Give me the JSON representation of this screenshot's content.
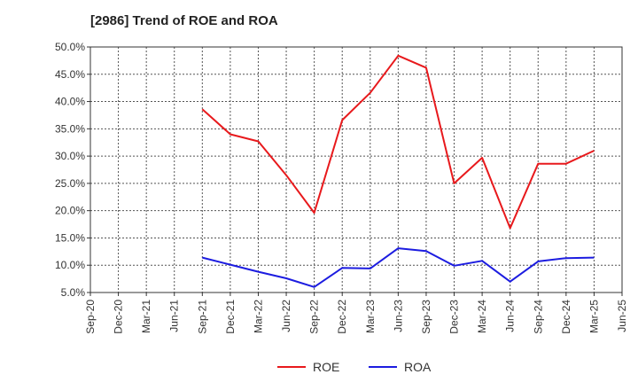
{
  "chart_data": {
    "type": "line",
    "title": "[2986]  Trend of ROE and ROA",
    "xlabel": "",
    "ylabel": "",
    "y_ticks": [
      "5.0%",
      "10.0%",
      "15.0%",
      "20.0%",
      "25.0%",
      "30.0%",
      "35.0%",
      "40.0%",
      "45.0%",
      "50.0%"
    ],
    "ylim": [
      5,
      50
    ],
    "x_ticks": [
      "Sep-20",
      "Dec-20",
      "Mar-21",
      "Jun-21",
      "Sep-21",
      "Dec-21",
      "Mar-22",
      "Jun-22",
      "Sep-22",
      "Dec-22",
      "Mar-23",
      "Jun-23",
      "Sep-23",
      "Dec-23",
      "Mar-24",
      "Jun-24",
      "Sep-24",
      "Dec-24",
      "Mar-25",
      "Jun-25"
    ],
    "grid": true,
    "legend_position": "bottom-center",
    "series": [
      {
        "name": "ROE",
        "color": "#e8191c",
        "points": [
          {
            "x": "Sep-21",
            "y": 38.6
          },
          {
            "x": "Dec-21",
            "y": 34.0
          },
          {
            "x": "Mar-22",
            "y": 32.7
          },
          {
            "x": "Jun-22",
            "y": 26.5
          },
          {
            "x": "Sep-22",
            "y": 19.6
          },
          {
            "x": "Dec-22",
            "y": 36.6
          },
          {
            "x": "Mar-23",
            "y": 41.6
          },
          {
            "x": "Jun-23",
            "y": 48.4
          },
          {
            "x": "Sep-23",
            "y": 46.2
          },
          {
            "x": "Dec-23",
            "y": 25.0
          },
          {
            "x": "Mar-24",
            "y": 29.7
          },
          {
            "x": "Jun-24",
            "y": 16.8
          },
          {
            "x": "Sep-24",
            "y": 28.6
          },
          {
            "x": "Dec-24",
            "y": 28.6
          },
          {
            "x": "Mar-25",
            "y": 31.0
          }
        ]
      },
      {
        "name": "ROA",
        "color": "#1c1ce0",
        "points": [
          {
            "x": "Sep-21",
            "y": 11.4
          },
          {
            "x": "Dec-21",
            "y": 10.1
          },
          {
            "x": "Mar-22",
            "y": 8.8
          },
          {
            "x": "Jun-22",
            "y": 7.6
          },
          {
            "x": "Sep-22",
            "y": 6.0
          },
          {
            "x": "Dec-22",
            "y": 9.5
          },
          {
            "x": "Mar-23",
            "y": 9.4
          },
          {
            "x": "Jun-23",
            "y": 13.1
          },
          {
            "x": "Sep-23",
            "y": 12.6
          },
          {
            "x": "Dec-23",
            "y": 9.9
          },
          {
            "x": "Mar-24",
            "y": 10.8
          },
          {
            "x": "Jun-24",
            "y": 7.0
          },
          {
            "x": "Sep-24",
            "y": 10.7
          },
          {
            "x": "Dec-24",
            "y": 11.3
          },
          {
            "x": "Mar-25",
            "y": 11.4
          }
        ]
      }
    ]
  }
}
